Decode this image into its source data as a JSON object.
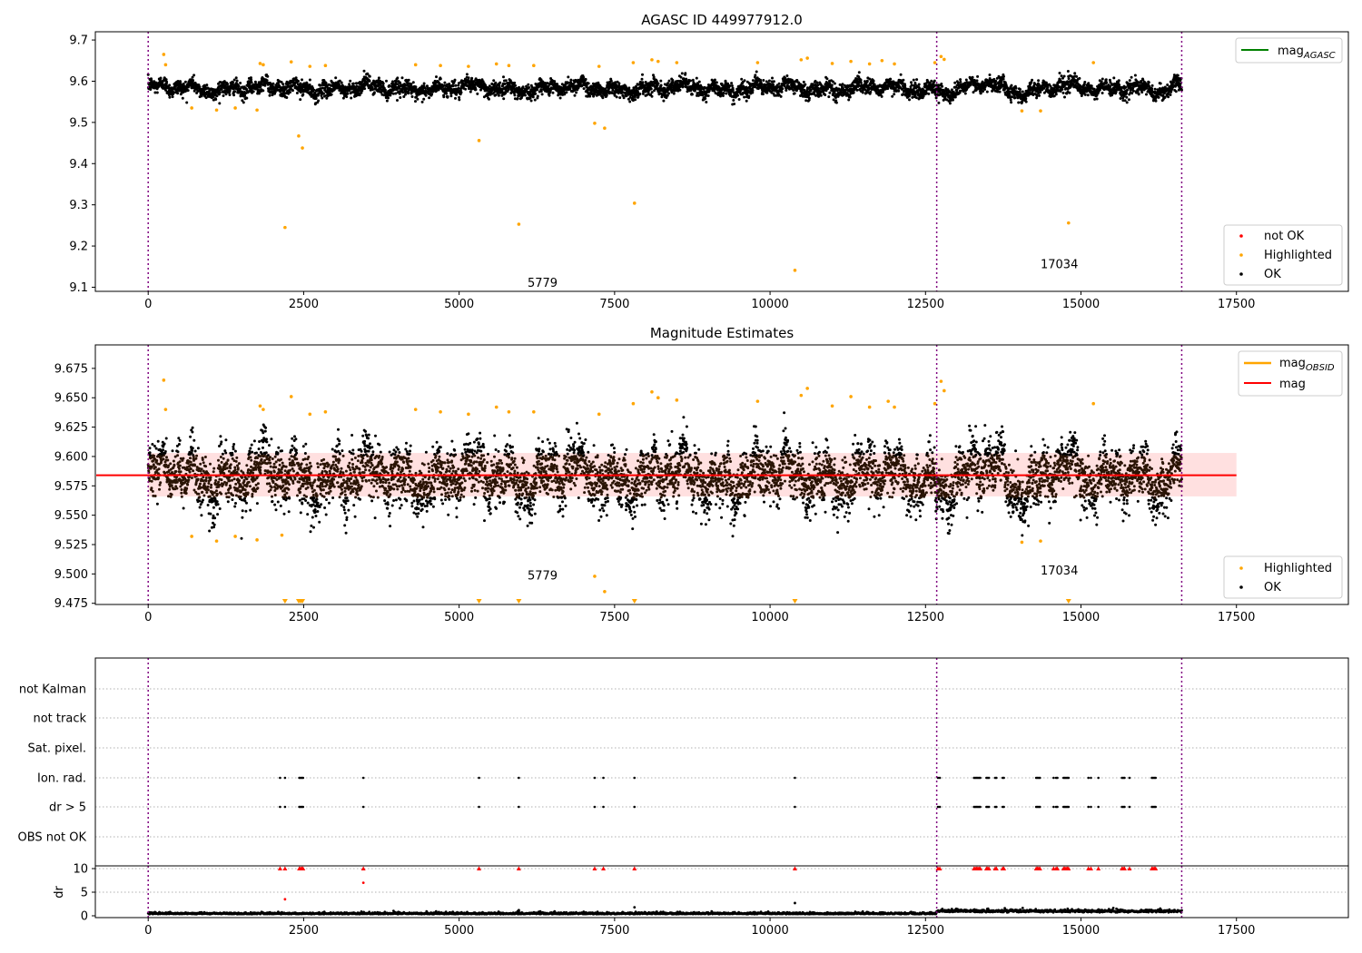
{
  "colors": {
    "ok": "#000000",
    "highlighted": "#ffa500",
    "not_ok": "#ff0000",
    "mag_agasc": "#008000",
    "mag_obsid": "#ffa500",
    "mag": "#ff0000",
    "mag_band": "#ffcccc",
    "obsid_boundary": "#800080",
    "grid": "#b0b0b0"
  },
  "obsid_boundaries": [
    0,
    12680,
    16620
  ],
  "chart_data": [
    {
      "type": "scatter",
      "title": "AGASC ID 449977912.0",
      "xlim": [
        -850,
        19300
      ],
      "ylim": [
        9.09,
        9.72
      ],
      "xticks": [
        0,
        2500,
        5000,
        7500,
        10000,
        12500,
        15000,
        17500
      ],
      "xtick_labels": [
        "0",
        "2500",
        "5000",
        "7500",
        "10000",
        "12500",
        "15000",
        "17500"
      ],
      "yticks": [
        9.1,
        9.2,
        9.3,
        9.4,
        9.5,
        9.6,
        9.7
      ],
      "ytick_labels": [
        "9.1",
        "9.2",
        "9.3",
        "9.4",
        "9.5",
        "9.6",
        "9.7"
      ],
      "annotations": [
        {
          "text": "5779",
          "x": 6100,
          "y": 9.11
        },
        {
          "text": "17034",
          "x": 14350,
          "y": 9.155
        }
      ],
      "legend_lines": [
        {
          "name": "mag",
          "sub": "AGASC",
          "color": "#008000"
        }
      ],
      "legend_lines_position": "top-right",
      "legend_points": [
        {
          "name": "not OK",
          "color": "#ff0000"
        },
        {
          "name": "Highlighted",
          "color": "#ffa500"
        },
        {
          "name": "OK",
          "color": "#000000"
        }
      ],
      "legend_points_position": "bottom-right",
      "mag_agasc": null,
      "ok_band": {
        "center": 9.583,
        "amplitude": 0.02
      },
      "highlighted_outliers": [
        {
          "x": 2200,
          "y": 9.245
        },
        {
          "x": 2420,
          "y": 9.467
        },
        {
          "x": 2480,
          "y": 9.438
        },
        {
          "x": 5320,
          "y": 9.456
        },
        {
          "x": 5960,
          "y": 9.253
        },
        {
          "x": 7180,
          "y": 9.498
        },
        {
          "x": 7340,
          "y": 9.486
        },
        {
          "x": 7820,
          "y": 9.304
        },
        {
          "x": 10400,
          "y": 9.141
        },
        {
          "x": 14800,
          "y": 9.256
        },
        {
          "x": 700,
          "y": 9.535
        },
        {
          "x": 1100,
          "y": 9.53
        },
        {
          "x": 1400,
          "y": 9.535
        },
        {
          "x": 1750,
          "y": 9.53
        },
        {
          "x": 14050,
          "y": 9.528
        },
        {
          "x": 14350,
          "y": 9.528
        }
      ],
      "highlighted_upper": [
        {
          "x": 250,
          "y": 9.665
        },
        {
          "x": 280,
          "y": 9.64
        },
        {
          "x": 1800,
          "y": 9.643
        },
        {
          "x": 1850,
          "y": 9.64
        },
        {
          "x": 2300,
          "y": 9.647
        },
        {
          "x": 2600,
          "y": 9.636
        },
        {
          "x": 2850,
          "y": 9.638
        },
        {
          "x": 4300,
          "y": 9.64
        },
        {
          "x": 4700,
          "y": 9.638
        },
        {
          "x": 5150,
          "y": 9.636
        },
        {
          "x": 5600,
          "y": 9.642
        },
        {
          "x": 5800,
          "y": 9.638
        },
        {
          "x": 6200,
          "y": 9.638
        },
        {
          "x": 7250,
          "y": 9.636
        },
        {
          "x": 7800,
          "y": 9.645
        },
        {
          "x": 8100,
          "y": 9.652
        },
        {
          "x": 8200,
          "y": 9.648
        },
        {
          "x": 8500,
          "y": 9.645
        },
        {
          "x": 9800,
          "y": 9.645
        },
        {
          "x": 10500,
          "y": 9.652
        },
        {
          "x": 10600,
          "y": 9.656
        },
        {
          "x": 11000,
          "y": 9.643
        },
        {
          "x": 11300,
          "y": 9.648
        },
        {
          "x": 11600,
          "y": 9.642
        },
        {
          "x": 11800,
          "y": 9.65
        },
        {
          "x": 12000,
          "y": 9.642
        },
        {
          "x": 12650,
          "y": 9.645
        },
        {
          "x": 12750,
          "y": 9.66
        },
        {
          "x": 12800,
          "y": 9.653
        },
        {
          "x": 15200,
          "y": 9.645
        }
      ]
    },
    {
      "type": "scatter",
      "title": "Magnitude Estimates",
      "xlim": [
        -850,
        19300
      ],
      "ylim": [
        9.474,
        9.695
      ],
      "xticks": [
        0,
        2500,
        5000,
        7500,
        10000,
        12500,
        15000,
        17500
      ],
      "xtick_labels": [
        "0",
        "2500",
        "5000",
        "7500",
        "10000",
        "12500",
        "15000",
        "17500"
      ],
      "yticks": [
        9.475,
        9.5,
        9.525,
        9.55,
        9.575,
        9.6,
        9.625,
        9.65,
        9.675
      ],
      "ytick_labels": [
        "9.475",
        "9.500",
        "9.525",
        "9.550",
        "9.575",
        "9.600",
        "9.625",
        "9.650",
        "9.675"
      ],
      "annotations": [
        {
          "text": "5779",
          "x": 6100,
          "y": 9.4985
        },
        {
          "text": "17034",
          "x": 14350,
          "y": 9.5025
        }
      ],
      "legend_lines": [
        {
          "name": "mag",
          "sub": "OBSID",
          "color": "#ffa500"
        },
        {
          "name": "mag",
          "sub": "",
          "color": "#ff0000"
        }
      ],
      "legend_lines_position": "top-right",
      "legend_points": [
        {
          "name": "Highlighted",
          "color": "#ffa500"
        },
        {
          "name": "OK",
          "color": "#000000"
        }
      ],
      "legend_points_position": "bottom-right",
      "mag": 9.584,
      "mag_band": [
        9.566,
        9.603
      ],
      "mag_line_x": [
        -850,
        17500
      ],
      "ok_band": {
        "center": 9.583,
        "amplitude": 0.025
      },
      "off_scale_markers_x": [
        2200,
        2420,
        2450,
        2480,
        5320,
        5960,
        7820,
        10400,
        14800
      ],
      "highlighted_points": [
        {
          "x": 700,
          "y": 9.532
        },
        {
          "x": 1100,
          "y": 9.528
        },
        {
          "x": 1400,
          "y": 9.532
        },
        {
          "x": 1750,
          "y": 9.529
        },
        {
          "x": 7180,
          "y": 9.498
        },
        {
          "x": 7340,
          "y": 9.485
        },
        {
          "x": 14050,
          "y": 9.527
        },
        {
          "x": 14350,
          "y": 9.528
        },
        {
          "x": 2150,
          "y": 9.533
        },
        {
          "x": 250,
          "y": 9.665
        },
        {
          "x": 280,
          "y": 9.64
        },
        {
          "x": 1800,
          "y": 9.643
        },
        {
          "x": 1850,
          "y": 9.64
        },
        {
          "x": 2300,
          "y": 9.651
        },
        {
          "x": 2600,
          "y": 9.636
        },
        {
          "x": 2850,
          "y": 9.638
        },
        {
          "x": 4300,
          "y": 9.64
        },
        {
          "x": 4700,
          "y": 9.638
        },
        {
          "x": 5150,
          "y": 9.636
        },
        {
          "x": 5600,
          "y": 9.642
        },
        {
          "x": 5800,
          "y": 9.638
        },
        {
          "x": 6200,
          "y": 9.638
        },
        {
          "x": 7250,
          "y": 9.636
        },
        {
          "x": 7800,
          "y": 9.645
        },
        {
          "x": 8100,
          "y": 9.655
        },
        {
          "x": 8200,
          "y": 9.65
        },
        {
          "x": 8500,
          "y": 9.648
        },
        {
          "x": 9800,
          "y": 9.647
        },
        {
          "x": 10500,
          "y": 9.652
        },
        {
          "x": 10600,
          "y": 9.658
        },
        {
          "x": 11000,
          "y": 9.643
        },
        {
          "x": 11300,
          "y": 9.651
        },
        {
          "x": 11600,
          "y": 9.642
        },
        {
          "x": 11900,
          "y": 9.647
        },
        {
          "x": 12000,
          "y": 9.642
        },
        {
          "x": 12650,
          "y": 9.645
        },
        {
          "x": 12750,
          "y": 9.664
        },
        {
          "x": 12800,
          "y": 9.656
        },
        {
          "x": 15200,
          "y": 9.645
        }
      ]
    },
    {
      "type": "scatter",
      "title": "",
      "xlim": [
        -850,
        19300
      ],
      "flag_rows": [
        "not Kalman",
        "not track",
        "Sat. pixel.",
        "Ion. rad.",
        "dr > 5",
        "OBS not OK"
      ],
      "flag_events_x": [
        2120,
        2200,
        2430,
        2450,
        2470,
        2490,
        3460,
        5320,
        5960,
        7180,
        7320,
        7820,
        10400,
        12700,
        12730,
        13280,
        13300,
        13320,
        13340,
        13360,
        13380,
        13480,
        13500,
        13520,
        13620,
        13640,
        13740,
        13760,
        14280,
        14300,
        14320,
        14340,
        14560,
        14600,
        14620,
        14720,
        14740,
        14760,
        14780,
        14800,
        15120,
        15160,
        15280,
        15660,
        15680,
        15700,
        15780,
        16140,
        16160,
        16180,
        16200
      ],
      "flag_rows_with_events": [
        "Ion. rad.",
        "dr > 5"
      ],
      "dr_ylabel": "dr",
      "dr_ylim": [
        0,
        10
      ],
      "dr_yticks": [
        0,
        5,
        10
      ],
      "dr_ytick_labels": [
        "0",
        "5",
        "10"
      ],
      "xticks": [
        0,
        2500,
        5000,
        7500,
        10000,
        12500,
        15000,
        17500
      ],
      "xtick_labels": [
        "0",
        "2500",
        "5000",
        "7500",
        "10000",
        "12500",
        "15000",
        "17500"
      ],
      "dr_outliers": [
        {
          "x": 2200,
          "y": 3.5
        },
        {
          "x": 3460,
          "y": 7
        },
        {
          "x": 7820,
          "y": 1.8
        },
        {
          "x": 10400,
          "y": 2.7
        },
        {
          "x": 5960,
          "y": 1.2
        }
      ]
    }
  ]
}
